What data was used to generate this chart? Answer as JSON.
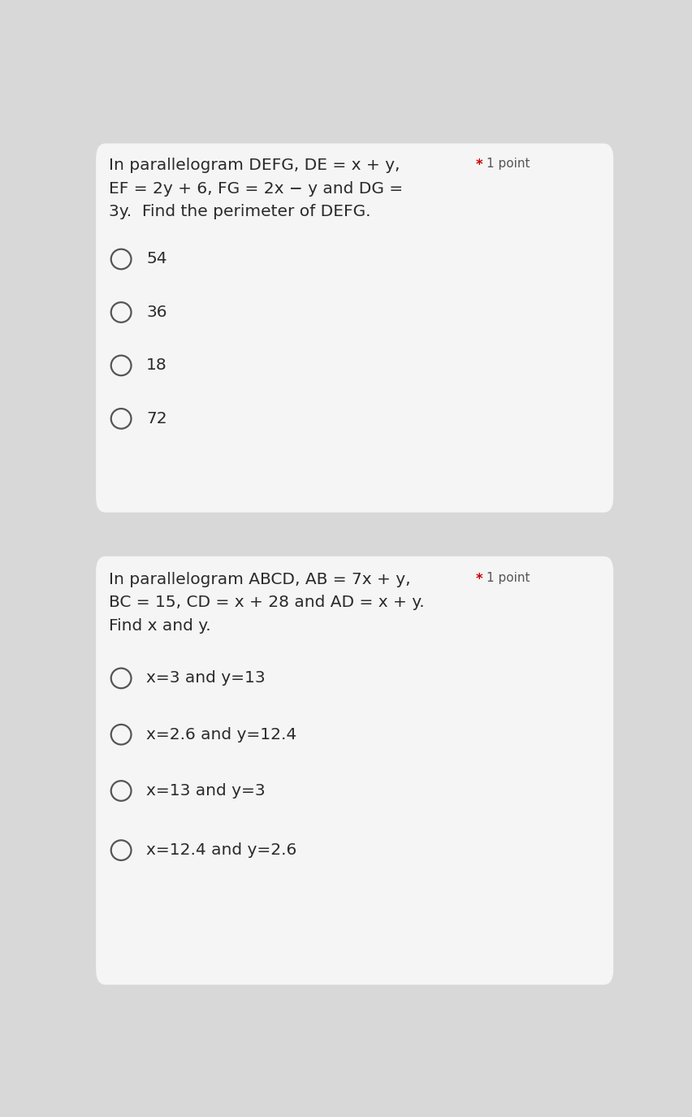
{
  "bg_color": "#d8d8d8",
  "card_color": "#f5f5f5",
  "q1": {
    "question_line1": "In parallelogram DEFG, DE = x + y,",
    "question_line2": "EF = 2y + 6, FG = 2x − y and DG =",
    "question_line3": "3y.  Find the perimeter of DEFG.",
    "star_label": "* 1 point",
    "choices": [
      "54",
      "36",
      "18",
      "72"
    ]
  },
  "q2": {
    "question_line1": "In parallelogram ABCD, AB = 7x + y,",
    "question_line2": "BC = 15, CD = x + 28 and AD = x + y.",
    "question_line3": "Find x and y.",
    "star_label": "* 1 point",
    "choices": [
      "x=3 and y=13",
      "x=2.6 and y=12.4",
      "x=13 and y=3",
      "x=12.4 and y=2.6"
    ]
  },
  "text_color": "#2a2a2a",
  "star_color": "#cc0000",
  "point_color": "#555555",
  "circle_edge_color": "#555555",
  "font_size_question": 14.5,
  "font_size_choice": 14.5,
  "font_size_star": 11
}
